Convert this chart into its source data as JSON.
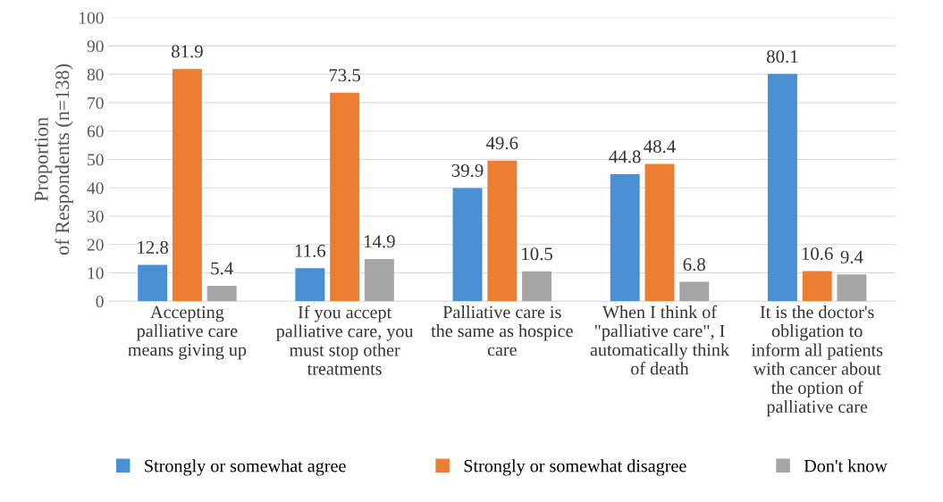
{
  "chart_data": {
    "type": "bar",
    "categories": [
      "Accepting\npalliative care\nmeans giving up",
      "If you accept\npalliative care, you\nmust stop other\ntreatments",
      "Palliative care is\nthe same as hospice\ncare",
      "When I think of\n\"palliative care\", I\nautomatically think\nof death",
      "It is the doctor's\nobligation to\ninform all patients\nwith cancer about\nthe option of\npalliative care"
    ],
    "series": [
      {
        "name": "Strongly or somewhat agree",
        "color": "#4a8fd4",
        "values": [
          12.8,
          11.6,
          39.9,
          44.8,
          80.1
        ]
      },
      {
        "name": "Strongly or somewhat disagree",
        "color": "#ed7d31",
        "values": [
          81.9,
          73.5,
          49.6,
          48.4,
          10.6
        ]
      },
      {
        "name": "Don't know",
        "color": "#a5a5a5",
        "values": [
          5.4,
          14.9,
          10.5,
          6.8,
          9.4
        ]
      }
    ],
    "ylabel": "Proportion\nof Respondents (n=138)",
    "ylim": [
      0,
      100
    ],
    "yticks": [
      0,
      10,
      20,
      30,
      40,
      50,
      60,
      70,
      80,
      90,
      100
    ],
    "grid": "y",
    "legend": "bottom",
    "data_labels": true
  }
}
